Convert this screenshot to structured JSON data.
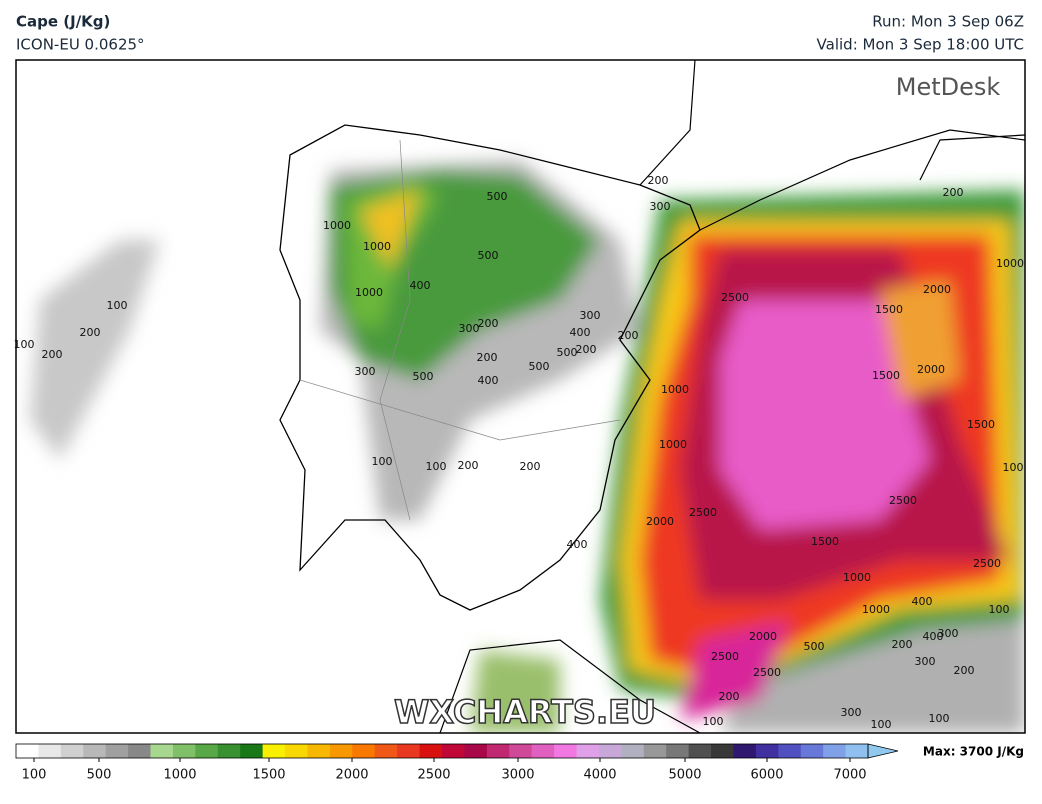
{
  "header": {
    "title": "Cape (J/Kg)",
    "model": "ICON-EU 0.0625°",
    "run": "Run: Mon 3 Sep 06Z",
    "valid": "Valid: Mon 3 Sep 18:00 UTC"
  },
  "logo": "MetDesk",
  "watermark": "WXCHARTS.EU",
  "contour_labels": [
    "1000",
    "1000",
    "1000",
    "500",
    "500",
    "400",
    "300",
    "200",
    "300",
    "400",
    "500",
    "200",
    "200",
    "200",
    "500",
    "400",
    "300",
    "500",
    "200",
    "300",
    "200",
    "1000",
    "2500",
    "2000",
    "1500",
    "1500",
    "2000",
    "1500",
    "100",
    "1000",
    "1000",
    "2500",
    "2000",
    "2500",
    "1500",
    "2500",
    "1000",
    "1000",
    "400",
    "100",
    "400",
    "2000",
    "2500",
    "2500",
    "500",
    "400",
    "300",
    "200",
    "300",
    "200",
    "200",
    "100",
    "300",
    "100",
    "100",
    "100",
    "200",
    "200",
    "100",
    "100",
    "100",
    "200",
    "200"
  ],
  "colorbar": {
    "ticks": [
      100,
      500,
      1000,
      1500,
      2000,
      2500,
      3000,
      4000,
      5000,
      6000,
      7000
    ],
    "max_label": "Max: 3700 J/Kg"
  }
}
